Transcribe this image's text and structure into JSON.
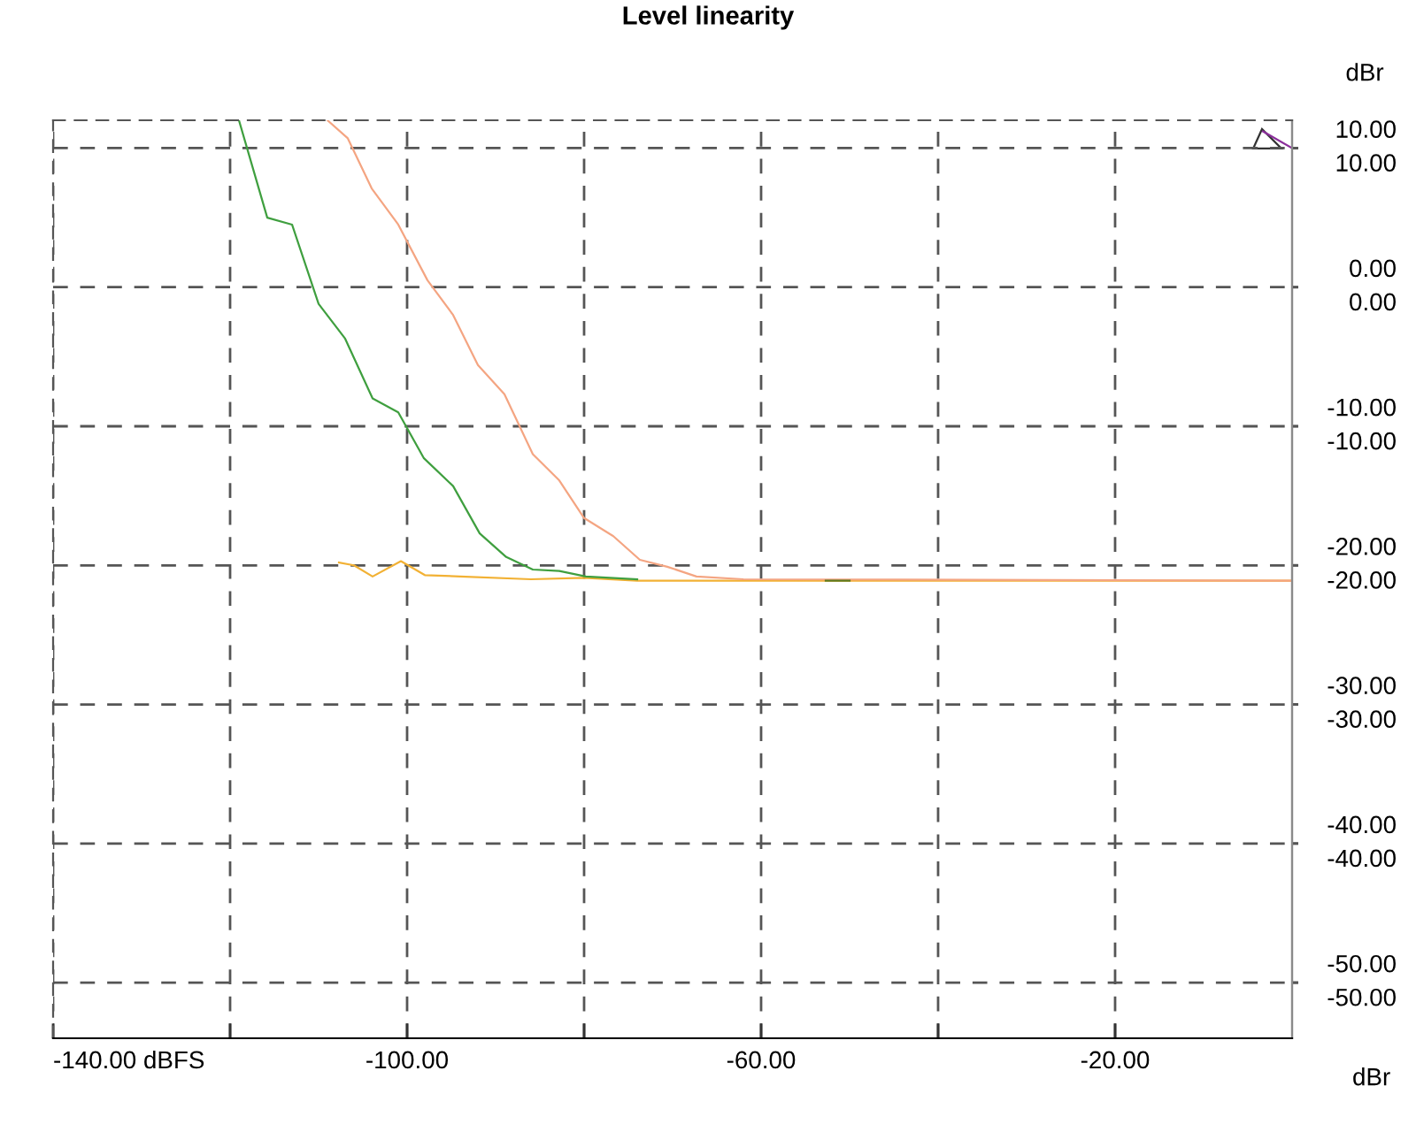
{
  "chart_data": {
    "type": "line",
    "title": "Level linearity",
    "y2label": "dBr",
    "annotations": [
      "dBr"
    ],
    "xlim": [
      -140,
      0
    ],
    "xticks": [
      {
        "value": -140,
        "label": "-140.00 dBFS"
      },
      {
        "value": -120,
        "label": null
      },
      {
        "value": -100,
        "label": "-100.00"
      },
      {
        "value": -80,
        "label": null
      },
      {
        "value": -60,
        "label": "-60.00"
      },
      {
        "value": -40,
        "label": null
      },
      {
        "value": -20,
        "label": "-20.00"
      }
    ],
    "ylim": [
      -54,
      12
    ],
    "yticks": [
      {
        "value": 10,
        "label": "10.00"
      },
      {
        "value": 0,
        "label": "0.00"
      },
      {
        "value": -10,
        "label": "-10.00"
      },
      {
        "value": -20,
        "label": "-20.00"
      },
      {
        "value": -30,
        "label": "-30.00"
      },
      {
        "value": -40,
        "label": "-40.00"
      },
      {
        "value": -50,
        "label": "-50.00"
      }
    ],
    "y2lim": [
      -54,
      12
    ],
    "y2ticks": [
      {
        "value": 10,
        "label": "10.00"
      },
      {
        "value": 0,
        "label": "0.00"
      },
      {
        "value": -10,
        "label": "-10.00"
      },
      {
        "value": -20,
        "label": "-20.00"
      },
      {
        "value": -30,
        "label": "-30.00"
      },
      {
        "value": -40,
        "label": "-40.00"
      },
      {
        "value": -50,
        "label": "-50.00"
      }
    ],
    "grid": true,
    "line_style": "solid",
    "series": [
      {
        "color": "#f2b134",
        "x": [
          -107.7,
          -106.0,
          -103.9,
          -100.7,
          -98.0,
          -94.0,
          -86.0,
          -80.0,
          -74.0,
          -70.0,
          0
        ],
        "values": [
          -19.8,
          -20.0,
          -20.8,
          -19.7,
          -20.7,
          -20.8,
          -21.0,
          -20.9,
          -21.1,
          -21.1,
          -21.1
        ]
      },
      {
        "color": "#f4a582",
        "x": [
          -109.0,
          -106.7,
          -104.0,
          -101.0,
          -97.7,
          -94.8,
          -92.0,
          -89.0,
          -85.8,
          -82.8,
          -80.0,
          -76.7,
          -73.7,
          -70.6,
          -67.3,
          -62.0,
          0
        ],
        "values": [
          12.0,
          10.7,
          7.1,
          4.5,
          0.5,
          -2.0,
          -5.6,
          -7.7,
          -12.0,
          -13.9,
          -16.6,
          -17.9,
          -19.6,
          -20.1,
          -20.8,
          -21.0,
          -21.1
        ]
      },
      {
        "color": "#3f9f3f",
        "x": [
          -119.0,
          -115.8,
          -113.0,
          -110.0,
          -107.0,
          -103.9,
          -101.0,
          -98.1,
          -94.8,
          -91.8,
          -88.8,
          -85.8,
          -82.8,
          -79.8,
          -74.0
        ],
        "values": [
          12.0,
          5.0,
          4.5,
          -1.2,
          -3.7,
          -8.0,
          -9.0,
          -12.3,
          -14.3,
          -17.7,
          -19.4,
          -20.3,
          -20.4,
          -20.8,
          -21.0
        ]
      },
      {
        "color": "#5b7a1f",
        "x": [
          -52.7,
          -50.0
        ],
        "values": [
          -21.1,
          -21.1
        ]
      },
      {
        "color": "#8b2f9b",
        "x": [
          -3.3,
          0
        ],
        "values": [
          11.2,
          10.0
        ]
      }
    ]
  }
}
